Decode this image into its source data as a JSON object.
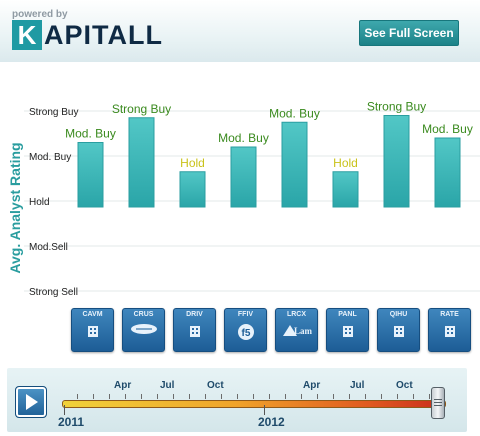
{
  "header": {
    "powered_by": "powered by",
    "logo_k": "K",
    "logo_rest": "APITALL",
    "full_screen_label": "See Full Screen"
  },
  "chart_data": {
    "type": "bar",
    "ylabel": "Avg. Analyst Rating",
    "y_ticks": [
      "Strong Sell",
      "Mod.Sell",
      "Hold",
      "Mod. Buy",
      "Strong Buy"
    ],
    "ylim": [
      1,
      5
    ],
    "grid": true,
    "categories": [
      "CAVM",
      "CRUS",
      "DRIV",
      "FFIV",
      "LRCX",
      "PANL",
      "QIHU",
      "RATE"
    ],
    "values": [
      4.3,
      4.85,
      3.65,
      4.2,
      4.75,
      3.65,
      4.9,
      4.4
    ],
    "bar_labels": [
      "Mod. Buy",
      "Strong Buy",
      "Hold",
      "Mod. Buy",
      "Mod. Buy",
      "Hold",
      "Strong Buy",
      "Mod. Buy"
    ],
    "label_colors": {
      "buy": "#3a8a1e",
      "hold": "#c9c21a"
    },
    "bar_color": "#35b3b3"
  },
  "tickers": [
    {
      "symbol": "CAVM",
      "icon": "building-icon"
    },
    {
      "symbol": "CRUS",
      "icon": "cirrus-logo-icon"
    },
    {
      "symbol": "DRIV",
      "icon": "building-icon"
    },
    {
      "symbol": "FFIV",
      "icon": "f5-logo-icon"
    },
    {
      "symbol": "LRCX",
      "icon": "lam-logo-icon"
    },
    {
      "symbol": "PANL",
      "icon": "building-icon"
    },
    {
      "symbol": "QIHU",
      "icon": "building-icon"
    },
    {
      "symbol": "RATE",
      "icon": "building-icon"
    }
  ],
  "timeline": {
    "years": [
      "2011",
      "2012"
    ],
    "months": [
      "Apr",
      "Jul",
      "Oct",
      "Apr",
      "Jul",
      "Oct"
    ]
  }
}
